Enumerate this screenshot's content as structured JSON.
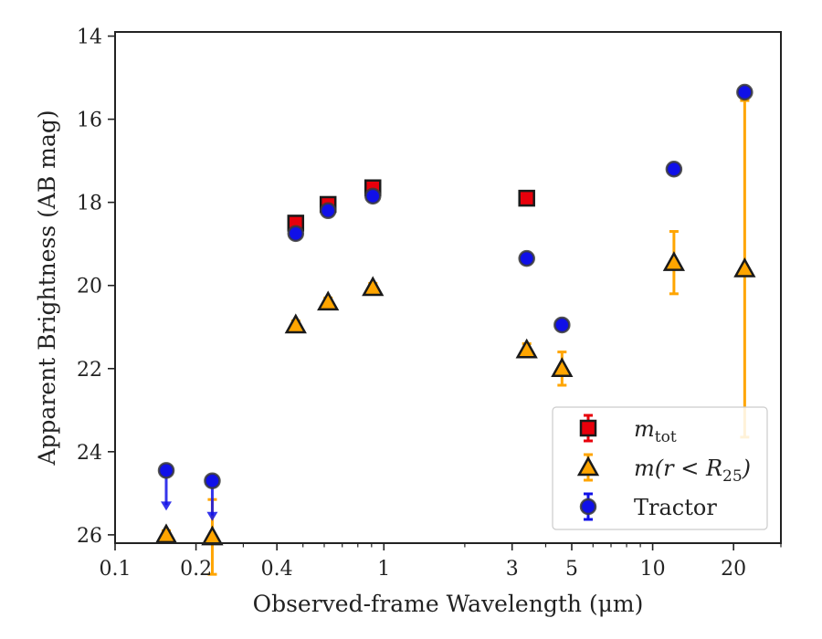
{
  "chart_data": {
    "type": "scatter",
    "xlabel": "Observed-frame Wavelength (μm)",
    "ylabel": "Apparent Brightness (AB mag)",
    "x_scale": "log",
    "xlim": [
      0.1,
      30
    ],
    "ylim": [
      26.2,
      13.9
    ],
    "y_inverted": true,
    "grid": false,
    "legend_position": "lower-right",
    "x_ticks": [
      {
        "value": 0.1,
        "label": "0.1"
      },
      {
        "value": 0.2,
        "label": "0.2"
      },
      {
        "value": 0.4,
        "label": "0.4"
      },
      {
        "value": 1,
        "label": "1"
      },
      {
        "value": 3,
        "label": "3"
      },
      {
        "value": 5,
        "label": "5"
      },
      {
        "value": 10,
        "label": "10"
      },
      {
        "value": 20,
        "label": "20"
      }
    ],
    "y_ticks": [
      {
        "value": 14,
        "label": "14"
      },
      {
        "value": 16,
        "label": "16"
      },
      {
        "value": 18,
        "label": "18"
      },
      {
        "value": 20,
        "label": "20"
      },
      {
        "value": 22,
        "label": "22"
      },
      {
        "value": 24,
        "label": "24"
      },
      {
        "value": 26,
        "label": "26"
      }
    ],
    "series": [
      {
        "name": "m_tot",
        "legend_main": "m",
        "legend_sub": "tot",
        "marker": "square",
        "color": "#e8000b",
        "edge_color": "#1a1a1a",
        "error_color": "#e8000b",
        "points": [
          {
            "x": 0.47,
            "y": 18.5,
            "err": 0.1
          },
          {
            "x": 0.62,
            "y": 18.05,
            "err": 0.1
          },
          {
            "x": 0.91,
            "y": 17.65,
            "err": 0.1
          },
          {
            "x": 3.4,
            "y": 17.9,
            "err": 0.05
          }
        ]
      },
      {
        "name": "m(r < R25)",
        "legend_main": "m(r < R",
        "legend_sub": "25",
        "legend_tail": ")",
        "marker": "triangle",
        "color": "#ffa500",
        "edge_color": "#1a1a1a",
        "error_color": "#ffa500",
        "points": [
          {
            "x": 0.155,
            "y": 26.0,
            "err": 0.1
          },
          {
            "x": 0.23,
            "y": 26.05,
            "err": 0.9
          },
          {
            "x": 0.47,
            "y": 20.95,
            "err": 0.1
          },
          {
            "x": 0.62,
            "y": 20.4,
            "err": 0.1
          },
          {
            "x": 0.91,
            "y": 20.05,
            "err": 0.1
          },
          {
            "x": 3.4,
            "y": 21.55,
            "err": 0.15
          },
          {
            "x": 4.6,
            "y": 22.0,
            "err": 0.4
          },
          {
            "x": 12.0,
            "y": 19.45,
            "err": 0.75
          },
          {
            "x": 22.0,
            "y": 19.6,
            "err_low": 4.05,
            "err_high": 4.05
          }
        ]
      },
      {
        "name": "Tractor",
        "legend_main": "Tractor",
        "marker": "circle",
        "color": "#1010e8",
        "edge_color": "#3a3a3a",
        "error_color": "#1010e8",
        "points": [
          {
            "x": 0.155,
            "y": 24.45,
            "upper_limit": true
          },
          {
            "x": 0.23,
            "y": 24.7,
            "upper_limit": true
          },
          {
            "x": 0.47,
            "y": 18.75,
            "err": 0.1
          },
          {
            "x": 0.62,
            "y": 18.2,
            "err": 0.1
          },
          {
            "x": 0.91,
            "y": 17.85,
            "err": 0.1
          },
          {
            "x": 3.4,
            "y": 19.35,
            "err": 0.1
          },
          {
            "x": 4.6,
            "y": 20.95,
            "err": 0.1
          },
          {
            "x": 12.0,
            "y": 17.2,
            "err": 0.1
          },
          {
            "x": 22.0,
            "y": 15.35,
            "err": 0.1
          }
        ]
      }
    ]
  }
}
